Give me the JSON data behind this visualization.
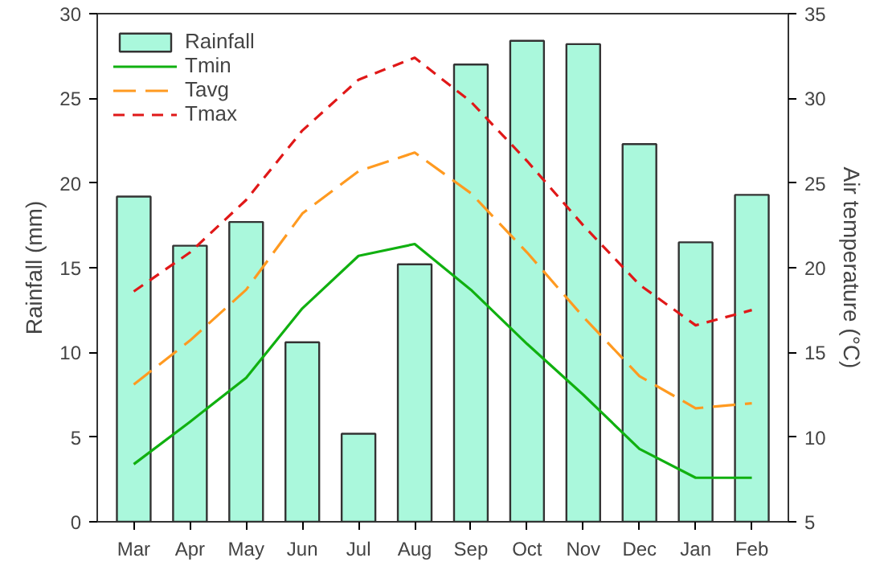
{
  "chart_data": {
    "type": "bar",
    "categories": [
      "Mar",
      "Apr",
      "May",
      "Jun",
      "Jul",
      "Aug",
      "Sep",
      "Oct",
      "Nov",
      "Dec",
      "Jan",
      "Feb"
    ],
    "ylabel": "Rainfall (mm)",
    "y2label": "Air temperature (°C)",
    "ylim": [
      0,
      30
    ],
    "yticks": [
      0,
      5,
      10,
      15,
      20,
      25,
      30
    ],
    "y2lim": [
      5,
      35
    ],
    "y2ticks": [
      5,
      10,
      15,
      20,
      25,
      30,
      35
    ],
    "grid": false,
    "legend": "top left",
    "series": [
      {
        "name": "Rainfall",
        "color": "#aaf8dc",
        "values": [
          19.2,
          16.3,
          17.7,
          10.6,
          5.2,
          15.2,
          27.0,
          28.4,
          28.2,
          22.3,
          16.5,
          19.3
        ]
      },
      {
        "name": "Tmin",
        "type": "line",
        "axis": "y2",
        "color": "#10b010",
        "line_style": "solid",
        "values": [
          8.4,
          10.9,
          13.5,
          17.6,
          20.7,
          21.4,
          18.7,
          15.5,
          12.5,
          9.3,
          7.6,
          7.6
        ]
      },
      {
        "name": "Tavg",
        "type": "line",
        "axis": "y2",
        "color": "#ff9a20",
        "line_style": "dashed",
        "values": [
          13.1,
          15.7,
          18.7,
          23.2,
          25.7,
          26.8,
          24.4,
          20.9,
          17.1,
          13.6,
          11.7,
          12.0
        ]
      },
      {
        "name": "Tmax",
        "type": "line",
        "axis": "y2",
        "color": "#e01818",
        "line_style": "dotted",
        "values": [
          18.6,
          20.9,
          24.0,
          28.1,
          31.1,
          32.4,
          29.8,
          26.3,
          22.5,
          19.0,
          16.6,
          17.5
        ]
      }
    ]
  }
}
